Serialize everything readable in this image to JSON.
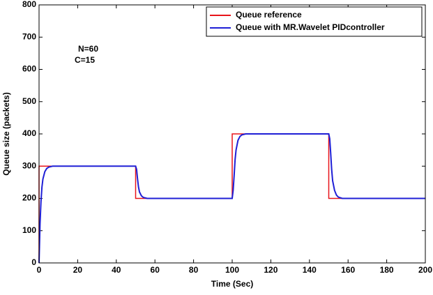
{
  "chart_data": {
    "type": "line",
    "xlabel": "Time (Sec)",
    "ylabel": "Queue size (packets)",
    "annotations": [
      "N=60",
      "C=15"
    ],
    "xlim": [
      0,
      200
    ],
    "xticks": [
      0,
      20,
      40,
      60,
      80,
      100,
      120,
      140,
      160,
      180,
      200
    ],
    "ylim": [
      0,
      800
    ],
    "yticks": [
      0,
      100,
      200,
      300,
      400,
      500,
      600,
      700,
      800
    ],
    "grid": false,
    "legend": "upper right",
    "series": [
      {
        "name": "Queue reference",
        "color": "#e8141a",
        "x": [
          0,
          0,
          50,
          50,
          100,
          100,
          150,
          150,
          200
        ],
        "values": [
          0,
          300,
          300,
          200,
          200,
          400,
          400,
          200,
          200
        ]
      },
      {
        "name": "Queue with MR.Wavelet PIDcontroller",
        "color": "#1f1fd6",
        "x": [
          0,
          0.5,
          1,
          1.5,
          2,
          3,
          4,
          5,
          7,
          50,
          50.5,
          51,
          51.5,
          52,
          53,
          54,
          56,
          100,
          100.5,
          101,
          101.5,
          102,
          103,
          104,
          105,
          107,
          150,
          150.5,
          151,
          151.5,
          152,
          153,
          154,
          155,
          157,
          200
        ],
        "values": [
          0,
          120,
          190,
          235,
          260,
          283,
          293,
          297,
          300,
          300,
          290,
          260,
          235,
          220,
          208,
          203,
          200,
          200,
          225,
          270,
          320,
          350,
          380,
          392,
          397,
          400,
          400,
          385,
          340,
          290,
          255,
          225,
          210,
          204,
          200,
          200
        ]
      }
    ]
  }
}
